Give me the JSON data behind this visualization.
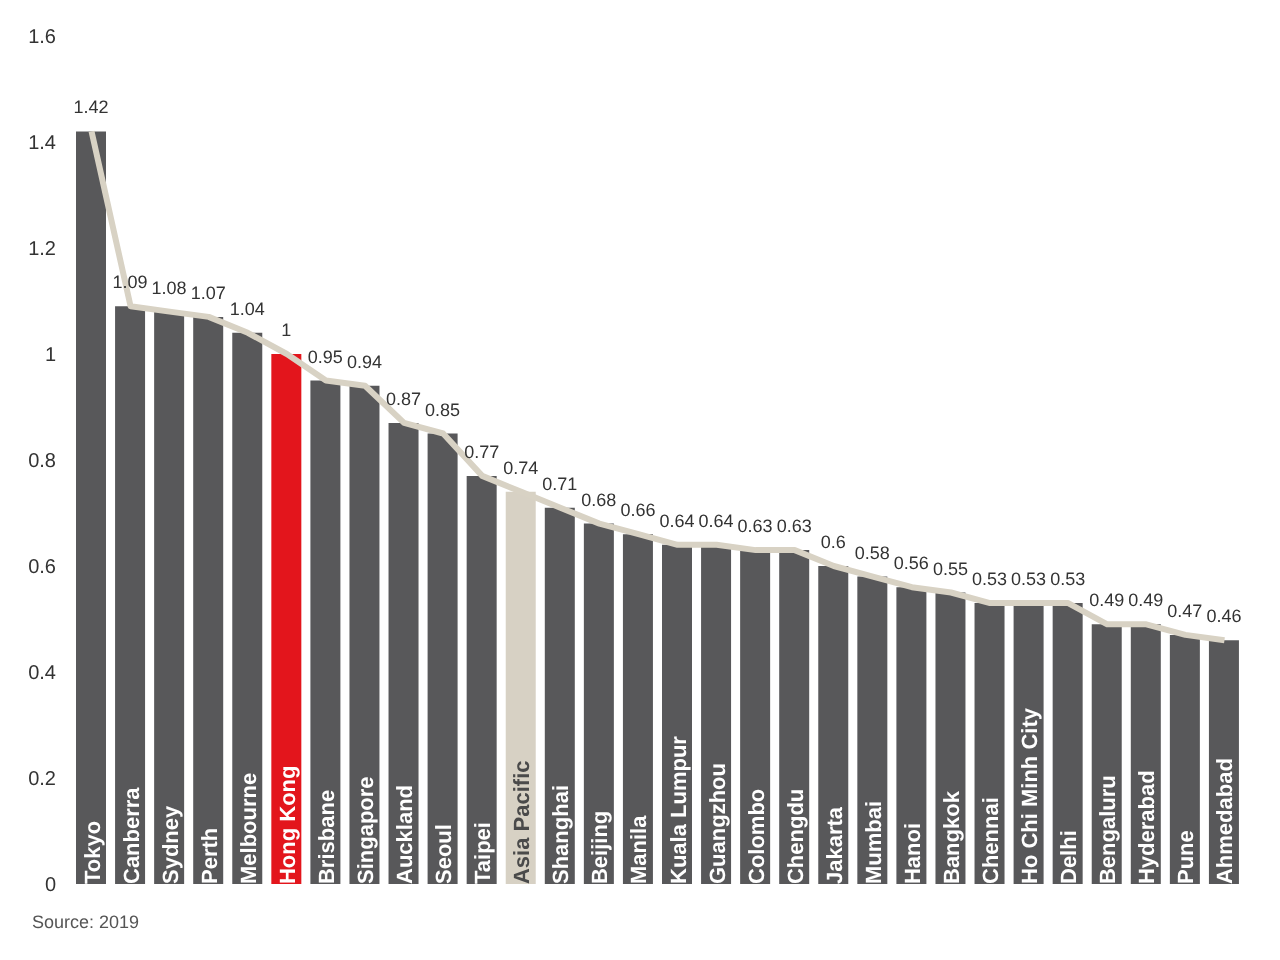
{
  "chart_data": {
    "type": "bar",
    "categories": [
      "Tokyo",
      "Canberra",
      "Sydney",
      "Perth",
      "Melbourne",
      "Hong Kong",
      "Brisbane",
      "Singapore",
      "Auckland",
      "Seoul",
      "Taipei",
      "Asia Pacific",
      "Shanghai",
      "Beijing",
      "Manila",
      "Kuala Lumpur",
      "Guangzhou",
      "Colombo",
      "Chengdu",
      "Jakarta",
      "Mumbai",
      "Hanoi",
      "Bangkok",
      "Chennai",
      "Ho Chi Minh City",
      "Delhi",
      "Bengaluru",
      "Hyderabad",
      "Pune",
      "Ahmedabad"
    ],
    "series": [
      {
        "value_labels": [
          "1.42",
          "1.09",
          "1.08",
          "1.07",
          "1.04",
          "1",
          "0.95",
          "0.94",
          "0.87",
          "0.85",
          "0.77",
          "0.74",
          "0.71",
          "0.68",
          "0.66",
          "0.64",
          "0.64",
          "0.63",
          "0.63",
          "0.6",
          "0.58",
          "0.56",
          "0.55",
          "0.53",
          "0.53",
          "0.53",
          "0.49",
          "0.49",
          "0.47",
          "0.46"
        ],
        "colors": [
          "#58585a",
          "#58585a",
          "#58585a",
          "#58585a",
          "#58585a",
          "#e3151c",
          "#58585a",
          "#58585a",
          "#58585a",
          "#58585a",
          "#58585a",
          "#d7d1c4",
          "#58585a",
          "#58585a",
          "#58585a",
          "#58585a",
          "#58585a",
          "#58585a",
          "#58585a",
          "#58585a",
          "#58585a",
          "#58585a",
          "#58585a",
          "#58585a",
          "#58585a",
          "#58585a",
          "#58585a",
          "#58585a",
          "#58585a",
          "#58585a"
        ],
        "values": [
          1.42,
          1.09,
          1.08,
          1.07,
          1.04,
          1,
          0.95,
          0.94,
          0.87,
          0.85,
          0.77,
          0.74,
          0.71,
          0.68,
          0.66,
          0.64,
          0.64,
          0.63,
          0.63,
          0.6,
          0.58,
          0.56,
          0.55,
          0.53,
          0.53,
          0.53,
          0.49,
          0.49,
          0.47,
          0.46
        ]
      },
      {
        "type": "line",
        "color": "#d8d2c4",
        "values": [
          1.42,
          1.09,
          1.08,
          1.07,
          1.04,
          1,
          0.95,
          0.94,
          0.87,
          0.85,
          0.77,
          0.74,
          0.71,
          0.68,
          0.66,
          0.64,
          0.64,
          0.63,
          0.63,
          0.6,
          0.58,
          0.56,
          0.55,
          0.53,
          0.53,
          0.53,
          0.49,
          0.49,
          0.47,
          0.46
        ]
      }
    ],
    "ylim": [
      0,
      1.6
    ],
    "yticks": [
      0,
      0.2,
      0.4,
      0.6,
      0.8,
      1,
      1.2,
      1.4,
      1.6
    ],
    "grid": false,
    "annotations": [
      "Source: 2019"
    ]
  }
}
